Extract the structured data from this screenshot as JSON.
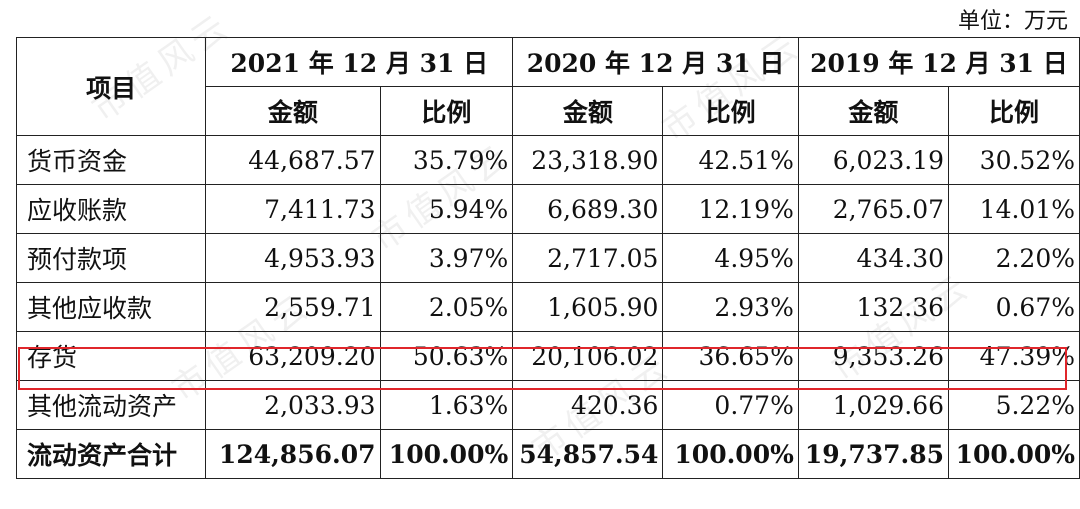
{
  "unit_label": "单位：万元",
  "watermark_text": "市值风云",
  "header": {
    "item": "项目",
    "periods": [
      "2021 年 12 月 31 日",
      "2020 年 12 月 31 日",
      "2019 年 12 月 31 日"
    ],
    "amount": "金额",
    "ratio": "比例"
  },
  "rows": [
    {
      "label": "货币资金",
      "cells": [
        "44,687.57",
        "35.79%",
        "23,318.90",
        "42.51%",
        "6,023.19",
        "30.52%"
      ]
    },
    {
      "label": "应收账款",
      "cells": [
        "7,411.73",
        "5.94%",
        "6,689.30",
        "12.19%",
        "2,765.07",
        "14.01%"
      ]
    },
    {
      "label": "预付款项",
      "cells": [
        "4,953.93",
        "3.97%",
        "2,717.05",
        "4.95%",
        "434.30",
        "2.20%"
      ]
    },
    {
      "label": "其他应收款",
      "cells": [
        "2,559.71",
        "2.05%",
        "1,605.90",
        "2.93%",
        "132.36",
        "0.67%"
      ]
    },
    {
      "label": "存货",
      "cells": [
        "63,209.20",
        "50.63%",
        "20,106.02",
        "36.65%",
        "9,353.26",
        "47.39%"
      ]
    },
    {
      "label": "其他流动资产",
      "cells": [
        "2,033.93",
        "1.63%",
        "420.36",
        "0.77%",
        "1,029.66",
        "5.22%"
      ]
    },
    {
      "label": "流动资产合计",
      "cells": [
        "124,856.07",
        "100.00%",
        "54,857.54",
        "100.00%",
        "19,737.85",
        "100.00%"
      ]
    }
  ],
  "highlight_row_label": "存货",
  "colors": {
    "highlight_border": "#e0262b",
    "grid": "#222222"
  }
}
